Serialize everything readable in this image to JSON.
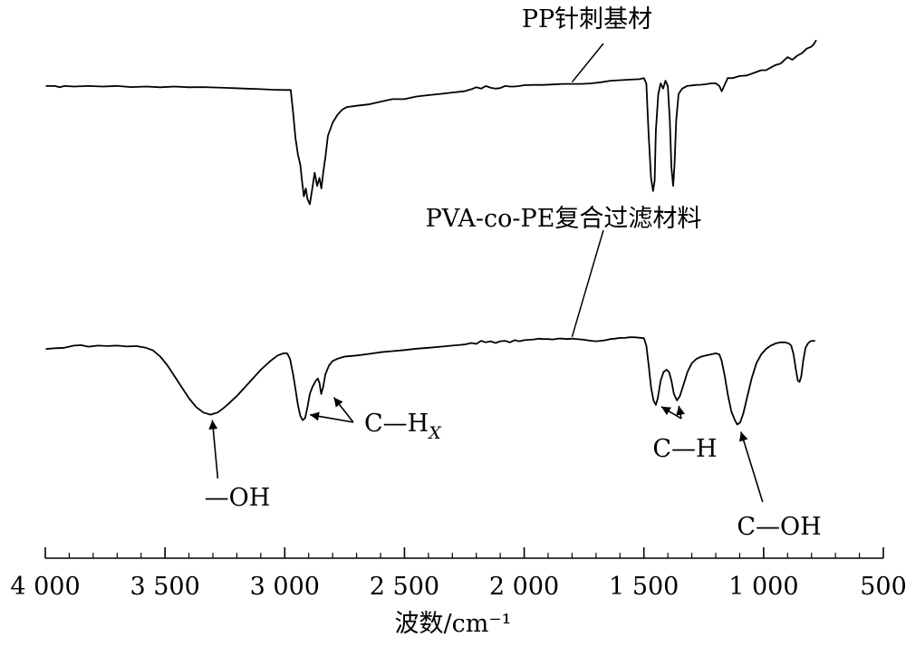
{
  "chart_data": {
    "type": "line",
    "xlabel": "波数/cm⁻¹",
    "ylabel": "",
    "xlim": [
      4000,
      500
    ],
    "x_reversed": true,
    "xticks": [
      4000,
      3500,
      3000,
      2500,
      2000,
      1500,
      1000,
      500
    ],
    "xtick_labels": [
      "4 000",
      "3 500",
      "3 000",
      "2 500",
      "2 000",
      "1 500",
      "1 000",
      "500"
    ],
    "y_units": "relative transmittance (unlabeled)",
    "grid": false,
    "legend": "none",
    "series": [
      {
        "name": "PP针刺基材",
        "label_at_x": 1800,
        "points": [
          [
            3998,
            0.69
          ],
          [
            3960,
            0.69
          ],
          [
            3940,
            0.685
          ],
          [
            3920,
            0.69
          ],
          [
            3880,
            0.688
          ],
          [
            3820,
            0.69
          ],
          [
            3760,
            0.688
          ],
          [
            3700,
            0.69
          ],
          [
            3640,
            0.686
          ],
          [
            3580,
            0.688
          ],
          [
            3520,
            0.685
          ],
          [
            3460,
            0.688
          ],
          [
            3400,
            0.685
          ],
          [
            3340,
            0.686
          ],
          [
            3280,
            0.684
          ],
          [
            3220,
            0.682
          ],
          [
            3160,
            0.68
          ],
          [
            3100,
            0.678
          ],
          [
            3050,
            0.676
          ],
          [
            3000,
            0.675
          ],
          [
            2975,
            0.675
          ],
          [
            2965,
            0.59
          ],
          [
            2955,
            0.49
          ],
          [
            2945,
            0.43
          ],
          [
            2935,
            0.39
          ],
          [
            2928,
            0.33
          ],
          [
            2920,
            0.27
          ],
          [
            2912,
            0.3
          ],
          [
            2905,
            0.26
          ],
          [
            2895,
            0.24
          ],
          [
            2885,
            0.3
          ],
          [
            2875,
            0.36
          ],
          [
            2865,
            0.31
          ],
          [
            2855,
            0.34
          ],
          [
            2847,
            0.3
          ],
          [
            2838,
            0.37
          ],
          [
            2830,
            0.42
          ],
          [
            2820,
            0.5
          ],
          [
            2800,
            0.55
          ],
          [
            2780,
            0.58
          ],
          [
            2760,
            0.6
          ],
          [
            2740,
            0.61
          ],
          [
            2700,
            0.615
          ],
          [
            2650,
            0.62
          ],
          [
            2600,
            0.63
          ],
          [
            2550,
            0.64
          ],
          [
            2500,
            0.64
          ],
          [
            2450,
            0.65
          ],
          [
            2400,
            0.655
          ],
          [
            2350,
            0.66
          ],
          [
            2300,
            0.665
          ],
          [
            2250,
            0.67
          ],
          [
            2220,
            0.678
          ],
          [
            2200,
            0.685
          ],
          [
            2180,
            0.68
          ],
          [
            2160,
            0.69
          ],
          [
            2140,
            0.683
          ],
          [
            2120,
            0.68
          ],
          [
            2100,
            0.682
          ],
          [
            2080,
            0.69
          ],
          [
            2060,
            0.688
          ],
          [
            2040,
            0.688
          ],
          [
            2020,
            0.69
          ],
          [
            2000,
            0.693
          ],
          [
            1960,
            0.694
          ],
          [
            1920,
            0.694
          ],
          [
            1880,
            0.696
          ],
          [
            1840,
            0.698
          ],
          [
            1800,
            0.698
          ],
          [
            1760,
            0.698
          ],
          [
            1720,
            0.7
          ],
          [
            1680,
            0.704
          ],
          [
            1640,
            0.71
          ],
          [
            1600,
            0.712
          ],
          [
            1560,
            0.714
          ],
          [
            1520,
            0.716
          ],
          [
            1500,
            0.72
          ],
          [
            1490,
            0.7
          ],
          [
            1480,
            0.5
          ],
          [
            1470,
            0.34
          ],
          [
            1462,
            0.29
          ],
          [
            1455,
            0.33
          ],
          [
            1450,
            0.52
          ],
          [
            1440,
            0.66
          ],
          [
            1430,
            0.7
          ],
          [
            1420,
            0.68
          ],
          [
            1410,
            0.71
          ],
          [
            1400,
            0.69
          ],
          [
            1392,
            0.56
          ],
          [
            1385,
            0.38
          ],
          [
            1378,
            0.31
          ],
          [
            1372,
            0.39
          ],
          [
            1365,
            0.56
          ],
          [
            1355,
            0.66
          ],
          [
            1340,
            0.68
          ],
          [
            1320,
            0.69
          ],
          [
            1300,
            0.692
          ],
          [
            1280,
            0.694
          ],
          [
            1260,
            0.695
          ],
          [
            1240,
            0.697
          ],
          [
            1220,
            0.7
          ],
          [
            1200,
            0.7
          ],
          [
            1185,
            0.69
          ],
          [
            1175,
            0.67
          ],
          [
            1165,
            0.69
          ],
          [
            1150,
            0.72
          ],
          [
            1130,
            0.72
          ],
          [
            1100,
            0.728
          ],
          [
            1070,
            0.73
          ],
          [
            1040,
            0.74
          ],
          [
            1010,
            0.75
          ],
          [
            990,
            0.75
          ],
          [
            970,
            0.76
          ],
          [
            950,
            0.77
          ],
          [
            930,
            0.775
          ],
          [
            900,
            0.8
          ],
          [
            880,
            0.79
          ],
          [
            860,
            0.805
          ],
          [
            840,
            0.815
          ],
          [
            820,
            0.832
          ],
          [
            800,
            0.84
          ],
          [
            790,
            0.85
          ],
          [
            780,
            0.865
          ]
        ]
      },
      {
        "name": "PVA-co-PE复合过滤材料",
        "label_at_x": 1800,
        "points": [
          [
            3998,
            0.475
          ],
          [
            3960,
            0.478
          ],
          [
            3920,
            0.48
          ],
          [
            3880,
            0.49
          ],
          [
            3850,
            0.492
          ],
          [
            3820,
            0.485
          ],
          [
            3780,
            0.49
          ],
          [
            3740,
            0.488
          ],
          [
            3700,
            0.49
          ],
          [
            3660,
            0.486
          ],
          [
            3620,
            0.488
          ],
          [
            3580,
            0.48
          ],
          [
            3550,
            0.468
          ],
          [
            3520,
            0.44
          ],
          [
            3490,
            0.4
          ],
          [
            3460,
            0.35
          ],
          [
            3430,
            0.3
          ],
          [
            3400,
            0.25
          ],
          [
            3370,
            0.21
          ],
          [
            3340,
            0.185
          ],
          [
            3310,
            0.175
          ],
          [
            3280,
            0.185
          ],
          [
            3250,
            0.21
          ],
          [
            3200,
            0.26
          ],
          [
            3150,
            0.32
          ],
          [
            3100,
            0.38
          ],
          [
            3060,
            0.42
          ],
          [
            3030,
            0.445
          ],
          [
            3005,
            0.455
          ],
          [
            2990,
            0.455
          ],
          [
            2978,
            0.43
          ],
          [
            2965,
            0.36
          ],
          [
            2955,
            0.29
          ],
          [
            2945,
            0.22
          ],
          [
            2935,
            0.17
          ],
          [
            2925,
            0.15
          ],
          [
            2915,
            0.16
          ],
          [
            2905,
            0.21
          ],
          [
            2895,
            0.27
          ],
          [
            2885,
            0.3
          ],
          [
            2870,
            0.33
          ],
          [
            2862,
            0.34
          ],
          [
            2855,
            0.32
          ],
          [
            2848,
            0.27
          ],
          [
            2840,
            0.3
          ],
          [
            2830,
            0.36
          ],
          [
            2815,
            0.4
          ],
          [
            2800,
            0.42
          ],
          [
            2780,
            0.43
          ],
          [
            2750,
            0.44
          ],
          [
            2700,
            0.445
          ],
          [
            2650,
            0.452
          ],
          [
            2600,
            0.46
          ],
          [
            2550,
            0.465
          ],
          [
            2500,
            0.47
          ],
          [
            2450,
            0.476
          ],
          [
            2400,
            0.48
          ],
          [
            2350,
            0.485
          ],
          [
            2300,
            0.49
          ],
          [
            2250,
            0.495
          ],
          [
            2220,
            0.502
          ],
          [
            2200,
            0.498
          ],
          [
            2180,
            0.512
          ],
          [
            2160,
            0.505
          ],
          [
            2140,
            0.51
          ],
          [
            2120,
            0.502
          ],
          [
            2100,
            0.51
          ],
          [
            2080,
            0.512
          ],
          [
            2060,
            0.505
          ],
          [
            2040,
            0.515
          ],
          [
            2020,
            0.51
          ],
          [
            2000,
            0.515
          ],
          [
            1960,
            0.518
          ],
          [
            1940,
            0.522
          ],
          [
            1920,
            0.52
          ],
          [
            1900,
            0.52
          ],
          [
            1880,
            0.518
          ],
          [
            1860,
            0.522
          ],
          [
            1840,
            0.522
          ],
          [
            1820,
            0.52
          ],
          [
            1800,
            0.522
          ],
          [
            1780,
            0.52
          ],
          [
            1760,
            0.518
          ],
          [
            1740,
            0.515
          ],
          [
            1720,
            0.512
          ],
          [
            1700,
            0.51
          ],
          [
            1680,
            0.512
          ],
          [
            1660,
            0.515
          ],
          [
            1640,
            0.52
          ],
          [
            1620,
            0.522
          ],
          [
            1600,
            0.525
          ],
          [
            1580,
            0.525
          ],
          [
            1560,
            0.528
          ],
          [
            1540,
            0.528
          ],
          [
            1520,
            0.526
          ],
          [
            1500,
            0.524
          ],
          [
            1490,
            0.49
          ],
          [
            1480,
            0.4
          ],
          [
            1470,
            0.3
          ],
          [
            1460,
            0.24
          ],
          [
            1450,
            0.22
          ],
          [
            1442,
            0.25
          ],
          [
            1430,
            0.33
          ],
          [
            1418,
            0.37
          ],
          [
            1405,
            0.38
          ],
          [
            1395,
            0.37
          ],
          [
            1385,
            0.33
          ],
          [
            1375,
            0.27
          ],
          [
            1362,
            0.24
          ],
          [
            1350,
            0.26
          ],
          [
            1335,
            0.31
          ],
          [
            1318,
            0.37
          ],
          [
            1300,
            0.41
          ],
          [
            1280,
            0.43
          ],
          [
            1260,
            0.44
          ],
          [
            1240,
            0.445
          ],
          [
            1220,
            0.45
          ],
          [
            1200,
            0.455
          ],
          [
            1185,
            0.45
          ],
          [
            1175,
            0.42
          ],
          [
            1162,
            0.35
          ],
          [
            1150,
            0.27
          ],
          [
            1135,
            0.19
          ],
          [
            1120,
            0.15
          ],
          [
            1110,
            0.13
          ],
          [
            1098,
            0.14
          ],
          [
            1085,
            0.18
          ],
          [
            1070,
            0.25
          ],
          [
            1050,
            0.34
          ],
          [
            1030,
            0.41
          ],
          [
            1010,
            0.45
          ],
          [
            990,
            0.475
          ],
          [
            970,
            0.49
          ],
          [
            950,
            0.5
          ],
          [
            930,
            0.505
          ],
          [
            910,
            0.505
          ],
          [
            895,
            0.5
          ],
          [
            885,
            0.49
          ],
          [
            875,
            0.45
          ],
          [
            865,
            0.38
          ],
          [
            857,
            0.33
          ],
          [
            850,
            0.325
          ],
          [
            843,
            0.35
          ],
          [
            835,
            0.42
          ],
          [
            825,
            0.48
          ],
          [
            815,
            0.5
          ],
          [
            805,
            0.51
          ],
          [
            795,
            0.512
          ],
          [
            785,
            0.512
          ]
        ]
      }
    ],
    "annotations": [
      {
        "text": "—OH",
        "arrow_to": {
          "series": 1,
          "x": 3310
        }
      },
      {
        "text": "C—H",
        "subscript": "X",
        "arrows_to": [
          {
            "series": 1,
            "x": 2925
          },
          {
            "series": 1,
            "x": 2848
          }
        ]
      },
      {
        "text": "C—H",
        "arrows_to": [
          {
            "series": 1,
            "x": 1450
          },
          {
            "series": 1,
            "x": 1362
          }
        ]
      },
      {
        "text": "C—OH",
        "arrow_to": {
          "series": 1,
          "x": 1110
        }
      }
    ]
  }
}
